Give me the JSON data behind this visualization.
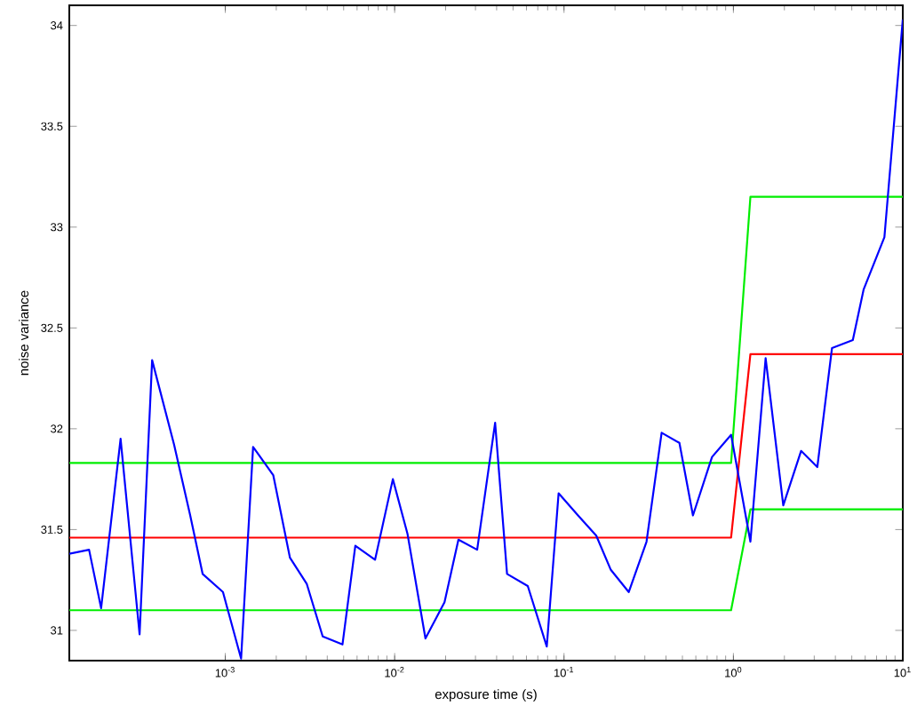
{
  "chart_data": {
    "type": "line",
    "xlabel": "exposure time (s)",
    "ylabel": "noise variance",
    "log": "x",
    "xlim": [
      0.00012,
      10
    ],
    "ylim": [
      30.85,
      34.1
    ],
    "xticks": [
      {
        "value": 0.001,
        "label": "10$^{-3}$"
      },
      {
        "value": 0.01,
        "label": "10$^{-2}$"
      },
      {
        "value": 0.1,
        "label": "10$^{-1}$"
      },
      {
        "value": 1,
        "label": "10$^{0}$"
      },
      {
        "value": 10,
        "label": "10$^{1}$"
      }
    ],
    "yticks": [
      31,
      31.5,
      32,
      32.5,
      33,
      33.5,
      34
    ],
    "series": [
      {
        "color": "#00ee00",
        "x": [
          0.00012,
          0.969,
          1.26,
          10
        ],
        "values": [
          31.83,
          31.83,
          33.15,
          33.15
        ]
      },
      {
        "color": "#00ee00",
        "x": [
          0.00012,
          0.969,
          1.26,
          10
        ],
        "values": [
          31.1,
          31.1,
          31.6,
          31.6
        ]
      },
      {
        "color": "#ff0000",
        "x": [
          0.00012,
          0.969,
          1.26,
          10
        ],
        "values": [
          31.46,
          31.46,
          32.37,
          32.37
        ]
      },
      {
        "color": "#0000ff",
        "x": [
          0.00012,
          0.000157,
          0.000185,
          0.000241,
          0.000312,
          0.00037,
          0.000499,
          0.000621,
          0.000735,
          0.000969,
          0.00124,
          0.00146,
          0.00192,
          0.00241,
          0.00303,
          0.00376,
          0.00492,
          0.00586,
          0.00766,
          0.00976,
          0.0119,
          0.0152,
          0.0197,
          0.0238,
          0.0307,
          0.0392,
          0.0461,
          0.0611,
          0.0791,
          0.0929,
          0.121,
          0.155,
          0.189,
          0.241,
          0.307,
          0.377,
          0.48,
          0.577,
          0.748,
          0.969,
          1.26,
          1.55,
          1.97,
          2.51,
          3.13,
          3.82,
          5.07,
          5.87,
          7.79,
          10
        ],
        "values": [
          31.38,
          31.4,
          31.11,
          31.95,
          30.98,
          32.34,
          31.92,
          31.57,
          31.28,
          31.19,
          30.86,
          31.91,
          31.77,
          31.36,
          31.23,
          30.97,
          30.93,
          31.42,
          31.35,
          31.75,
          31.48,
          30.96,
          31.14,
          31.45,
          31.4,
          32.03,
          31.28,
          31.22,
          30.92,
          31.68,
          31.57,
          31.47,
          31.3,
          31.19,
          31.44,
          31.98,
          31.93,
          31.57,
          31.86,
          31.97,
          31.44,
          32.35,
          31.62,
          31.89,
          31.81,
          32.4,
          32.44,
          32.69,
          32.95,
          34.03
        ]
      }
    ]
  }
}
